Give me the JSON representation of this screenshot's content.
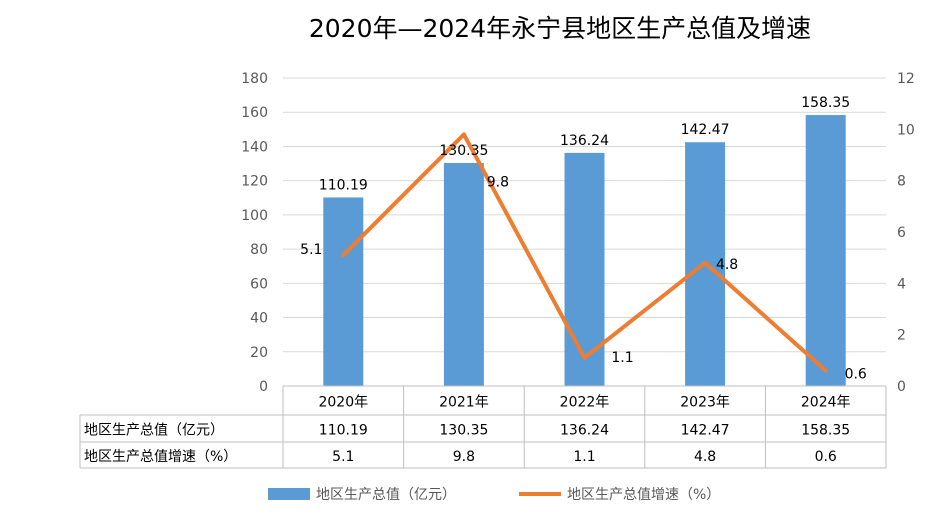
{
  "chart_data": {
    "type": "bar",
    "title": "2020年—2024年永宁县地区生产总值及增速",
    "categories": [
      "2020年",
      "2021年",
      "2022年",
      "2023年",
      "2024年"
    ],
    "series": [
      {
        "name": "地区生产总值（亿元）",
        "type": "bar",
        "axis": "left",
        "color": "#5B9BD5",
        "values": [
          110.19,
          130.35,
          136.24,
          142.47,
          158.35
        ],
        "labels": [
          "110.19",
          "130.35",
          "136.24",
          "142.47",
          "158.35"
        ]
      },
      {
        "name": "地区生产总值增速（%）",
        "type": "line",
        "axis": "right",
        "color": "#ED7D31",
        "values": [
          5.1,
          9.8,
          1.1,
          4.8,
          0.6
        ],
        "labels": [
          "5.1",
          "9.8",
          "1.1",
          "4.8",
          "0.6"
        ]
      }
    ],
    "y_left": {
      "range": [
        0,
        180
      ],
      "ticks": [
        "0",
        "20",
        "40",
        "60",
        "80",
        "100",
        "120",
        "140",
        "160",
        "180"
      ]
    },
    "y_right": {
      "range": [
        0,
        12
      ],
      "ticks": [
        "0",
        "2",
        "4",
        "6",
        "8",
        "10",
        "12"
      ]
    },
    "grid": true,
    "legend": "bottom",
    "data_table": {
      "rows": [
        {
          "label": "地区生产总值（亿元）",
          "cells": [
            "110.19",
            "130.35",
            "136.24",
            "142.47",
            "158.35"
          ]
        },
        {
          "label": "地区生产总值增速（%）",
          "cells": [
            "5.1",
            "9.8",
            "1.1",
            "4.8",
            "0.6"
          ]
        }
      ]
    },
    "colors": {
      "gridline": "#D9D9D9",
      "axis_text": "#595959",
      "table_border": "#BFBFBF"
    }
  }
}
